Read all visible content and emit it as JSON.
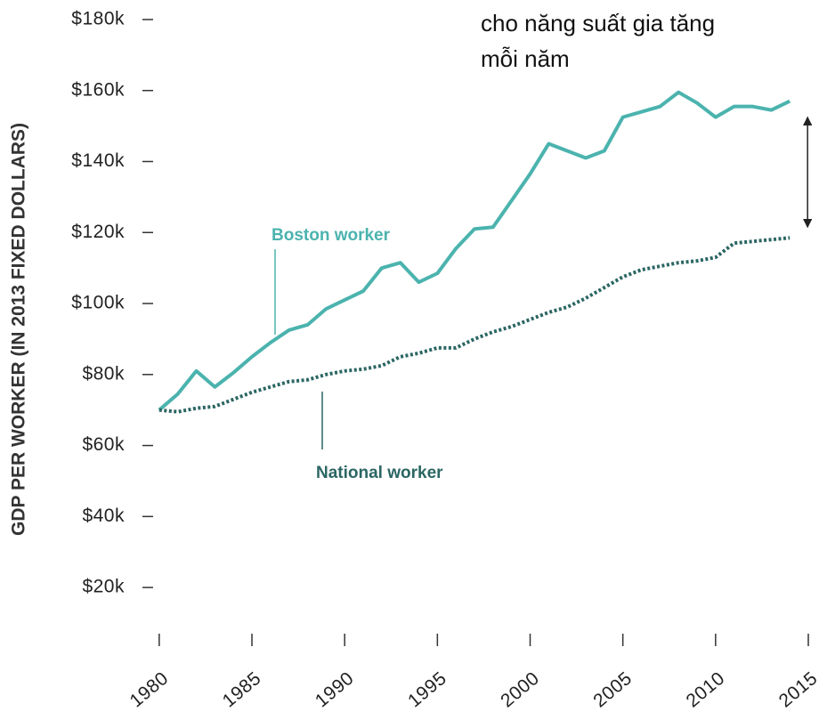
{
  "chart_data": {
    "type": "line",
    "y_label": "GDP PER WORKER (IN 2013 FIXED DOLLARS)",
    "annotation": [
      "cho năng suất gia tăng",
      "mỗi năm"
    ],
    "x": [
      1980,
      1981,
      1982,
      1983,
      1984,
      1985,
      1986,
      1987,
      1988,
      1989,
      1990,
      1991,
      1992,
      1993,
      1994,
      1995,
      1996,
      1997,
      1998,
      1999,
      2000,
      2001,
      2002,
      2003,
      2004,
      2005,
      2006,
      2007,
      2008,
      2009,
      2010,
      2011,
      2012,
      2013,
      2014
    ],
    "series": [
      {
        "name": "Boston worker",
        "color": "#4bb3ae",
        "dash": false,
        "values": [
          70000,
          74500,
          81000,
          76500,
          80500,
          85000,
          89000,
          92500,
          94000,
          98500,
          101000,
          103500,
          110000,
          111500,
          106000,
          108500,
          115500,
          121000,
          121500,
          129000,
          136500,
          145000,
          143000,
          141000,
          143000,
          152500,
          154000,
          155500,
          159500,
          156500,
          152500,
          155500,
          155500,
          154500,
          157000
        ]
      },
      {
        "name": "National worker",
        "color": "#2b6663",
        "dash": true,
        "values": [
          70000,
          69500,
          70500,
          71000,
          73000,
          75000,
          76500,
          78000,
          78500,
          80000,
          81000,
          81500,
          82500,
          85000,
          86000,
          87500,
          87500,
          90000,
          92000,
          93500,
          95500,
          97500,
          99000,
          101500,
          104500,
          107500,
          109500,
          110500,
          111500,
          112000,
          113000,
          117000,
          117500,
          118000,
          118500
        ]
      }
    ],
    "xlim": [
      1979,
      2015
    ],
    "xticks": [
      1980,
      1985,
      1990,
      1995,
      2000,
      2005,
      2010,
      2015
    ],
    "ylim": [
      10000,
      185000
    ],
    "yticks": [
      {
        "value": 20000,
        "label": "$20k"
      },
      {
        "value": 40000,
        "label": "$40k"
      },
      {
        "value": 60000,
        "label": "$60k"
      },
      {
        "value": 80000,
        "label": "$80k"
      },
      {
        "value": 100000,
        "label": "$100k"
      },
      {
        "value": 120000,
        "label": "$120k"
      },
      {
        "value": 140000,
        "label": "$140k"
      },
      {
        "value": 160000,
        "label": "$160k"
      },
      {
        "value": 180000,
        "label": "$180k"
      }
    ]
  }
}
